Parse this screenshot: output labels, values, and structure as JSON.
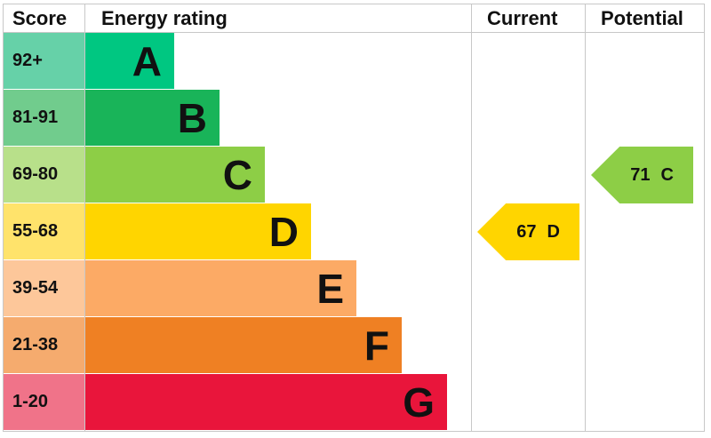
{
  "chart_data": {
    "type": "table",
    "headers": {
      "score": "Score",
      "rating": "Energy rating",
      "current": "Current",
      "potential": "Potential"
    },
    "bands": [
      {
        "score": "92+",
        "letter": "A",
        "color": "#00c781",
        "score_color": "#66d1a8"
      },
      {
        "score": "81-91",
        "letter": "B",
        "color": "#19b459",
        "score_color": "#71cc8d"
      },
      {
        "score": "69-80",
        "letter": "C",
        "color": "#8dce46",
        "score_color": "#b8e08a"
      },
      {
        "score": "55-68",
        "letter": "D",
        "color": "#ffd500",
        "score_color": "#ffe36b"
      },
      {
        "score": "39-54",
        "letter": "E",
        "color": "#fcaa65",
        "score_color": "#fdc79a"
      },
      {
        "score": "21-38",
        "letter": "F",
        "color": "#ef8023",
        "score_color": "#f5ab6e"
      },
      {
        "score": "1-20",
        "letter": "G",
        "color": "#e9153b",
        "score_color": "#f07389"
      }
    ],
    "current": {
      "value": "67",
      "letter": "D",
      "color": "#ffd500"
    },
    "potential": {
      "value": "71",
      "letter": "C",
      "color": "#8dce46"
    }
  }
}
